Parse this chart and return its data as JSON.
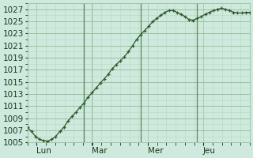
{
  "background_color": "#ceeadf",
  "plot_bg_color": "#ceeadf",
  "line_color": "#2d5a2d",
  "marker_color": "#2d5a2d",
  "grid_color_major": "#9dbf9d",
  "grid_color_minor": "#b8d8b8",
  "tick_label_color": "#1a3a1a",
  "ylim": [
    1005,
    1028
  ],
  "yticks": [
    1005,
    1007,
    1009,
    1011,
    1013,
    1015,
    1017,
    1019,
    1021,
    1023,
    1025,
    1027
  ],
  "xtick_labels": [
    "Lun",
    "Mar",
    "Mer",
    "Jeu"
  ],
  "xtick_positions": [
    0.25,
    0.5,
    0.75,
    1.0
  ],
  "values": [
    1007.5,
    1006.8,
    1006.0,
    1005.5,
    1005.3,
    1005.2,
    1005.5,
    1006.0,
    1006.8,
    1007.5,
    1008.5,
    1009.3,
    1010.0,
    1010.8,
    1011.5,
    1012.5,
    1013.2,
    1014.0,
    1014.8,
    1015.5,
    1016.3,
    1017.2,
    1017.9,
    1018.5,
    1019.2,
    1020.0,
    1021.0,
    1022.0,
    1022.8,
    1023.5,
    1024.2,
    1025.0,
    1025.5,
    1026.0,
    1026.5,
    1026.8,
    1026.8,
    1026.5,
    1026.2,
    1025.8,
    1025.3,
    1025.2,
    1025.5,
    1025.8,
    1026.2,
    1026.5,
    1026.8,
    1027.0,
    1027.2,
    1027.0,
    1026.8,
    1026.5,
    1026.4,
    1026.4,
    1026.5,
    1026.5
  ],
  "n_days": 4,
  "day_boundary_indices": [
    14,
    28,
    42
  ],
  "vline_color": "#5a8a5a",
  "fontsize_tick": 7.5
}
